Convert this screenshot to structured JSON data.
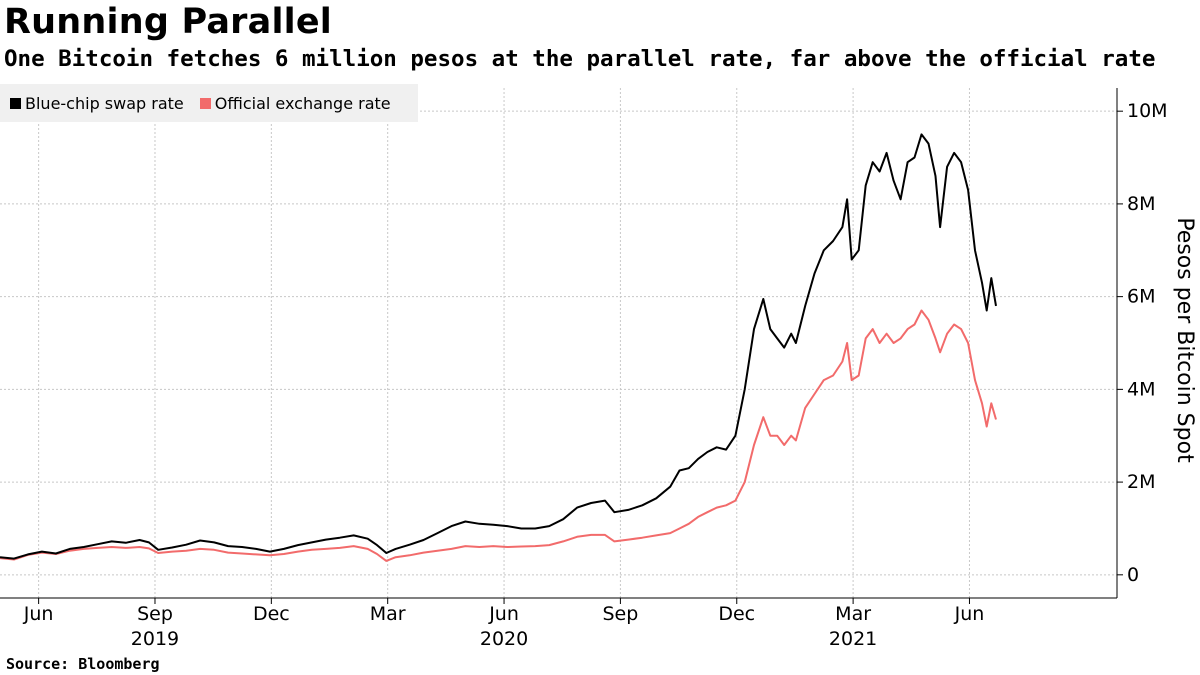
{
  "header": {
    "title": "Running Parallel",
    "subtitle": "One Bitcoin fetches 6 million pesos at the parallel rate, far above the official rate"
  },
  "footer": {
    "source": "Source: Bloomberg"
  },
  "colors": {
    "blue_chip": "#000000",
    "official": "#f26b6b",
    "grid": "#c8c8c8",
    "legend_bg": "#f0f0f0"
  },
  "chart_data": {
    "type": "line",
    "title": "Running Parallel",
    "subtitle": "One Bitcoin fetches 6 million pesos at the parallel rate, far above the official rate",
    "xlabel": "",
    "ylabel": "Pesos per Bitcoin Spot",
    "ylim": [
      -500000,
      10500000
    ],
    "yticks": [
      0,
      2000000,
      4000000,
      6000000,
      8000000,
      10000000
    ],
    "ytick_labels": [
      "0",
      "2M",
      "4M",
      "6M",
      "8M",
      "10M"
    ],
    "xlim": [
      0,
      2.4
    ],
    "xticks": [
      {
        "t": 0.083,
        "label": "Jun"
      },
      {
        "t": 0.333,
        "label": "Sep"
      },
      {
        "t": 0.583,
        "label": "Dec"
      },
      {
        "t": 0.833,
        "label": "Mar"
      },
      {
        "t": 1.083,
        "label": "Jun"
      },
      {
        "t": 1.333,
        "label": "Sep"
      },
      {
        "t": 1.583,
        "label": "Dec"
      },
      {
        "t": 1.833,
        "label": "Mar"
      },
      {
        "t": 2.083,
        "label": "Jun"
      }
    ],
    "year_labels": [
      {
        "t": 0.333,
        "label": "2019"
      },
      {
        "t": 1.083,
        "label": "2020"
      },
      {
        "t": 1.833,
        "label": "2021"
      }
    ],
    "grid": true,
    "legend": "top-left",
    "series": [
      {
        "name": "Blue-chip swap rate",
        "color": "#000000",
        "points": [
          [
            0.0,
            380000
          ],
          [
            0.03,
            350000
          ],
          [
            0.06,
            440000
          ],
          [
            0.09,
            500000
          ],
          [
            0.12,
            460000
          ],
          [
            0.15,
            560000
          ],
          [
            0.18,
            600000
          ],
          [
            0.21,
            660000
          ],
          [
            0.24,
            720000
          ],
          [
            0.27,
            690000
          ],
          [
            0.3,
            750000
          ],
          [
            0.32,
            700000
          ],
          [
            0.34,
            540000
          ],
          [
            0.37,
            590000
          ],
          [
            0.4,
            650000
          ],
          [
            0.43,
            740000
          ],
          [
            0.46,
            700000
          ],
          [
            0.49,
            620000
          ],
          [
            0.52,
            600000
          ],
          [
            0.55,
            560000
          ],
          [
            0.58,
            500000
          ],
          [
            0.61,
            560000
          ],
          [
            0.64,
            640000
          ],
          [
            0.67,
            700000
          ],
          [
            0.7,
            760000
          ],
          [
            0.73,
            800000
          ],
          [
            0.76,
            850000
          ],
          [
            0.79,
            780000
          ],
          [
            0.81,
            640000
          ],
          [
            0.83,
            470000
          ],
          [
            0.85,
            560000
          ],
          [
            0.88,
            650000
          ],
          [
            0.91,
            750000
          ],
          [
            0.94,
            900000
          ],
          [
            0.97,
            1050000
          ],
          [
            1.0,
            1150000
          ],
          [
            1.03,
            1100000
          ],
          [
            1.06,
            1080000
          ],
          [
            1.09,
            1050000
          ],
          [
            1.12,
            1000000
          ],
          [
            1.15,
            1000000
          ],
          [
            1.18,
            1050000
          ],
          [
            1.21,
            1200000
          ],
          [
            1.24,
            1450000
          ],
          [
            1.27,
            1550000
          ],
          [
            1.3,
            1600000
          ],
          [
            1.32,
            1350000
          ],
          [
            1.35,
            1400000
          ],
          [
            1.38,
            1500000
          ],
          [
            1.41,
            1650000
          ],
          [
            1.44,
            1900000
          ],
          [
            1.46,
            2250000
          ],
          [
            1.48,
            2300000
          ],
          [
            1.5,
            2500000
          ],
          [
            1.52,
            2650000
          ],
          [
            1.54,
            2750000
          ],
          [
            1.56,
            2700000
          ],
          [
            1.58,
            3000000
          ],
          [
            1.6,
            4000000
          ],
          [
            1.62,
            5300000
          ],
          [
            1.64,
            5950000
          ],
          [
            1.655,
            5300000
          ],
          [
            1.67,
            5100000
          ],
          [
            1.685,
            4900000
          ],
          [
            1.7,
            5200000
          ],
          [
            1.71,
            5000000
          ],
          [
            1.73,
            5800000
          ],
          [
            1.75,
            6500000
          ],
          [
            1.77,
            7000000
          ],
          [
            1.79,
            7200000
          ],
          [
            1.81,
            7500000
          ],
          [
            1.82,
            8100000
          ],
          [
            1.83,
            6800000
          ],
          [
            1.845,
            7000000
          ],
          [
            1.86,
            8400000
          ],
          [
            1.875,
            8900000
          ],
          [
            1.89,
            8700000
          ],
          [
            1.905,
            9100000
          ],
          [
            1.92,
            8500000
          ],
          [
            1.935,
            8100000
          ],
          [
            1.95,
            8900000
          ],
          [
            1.965,
            9000000
          ],
          [
            1.98,
            9500000
          ],
          [
            1.995,
            9300000
          ],
          [
            2.01,
            8600000
          ],
          [
            2.02,
            7500000
          ],
          [
            2.035,
            8800000
          ],
          [
            2.05,
            9100000
          ],
          [
            2.065,
            8900000
          ],
          [
            2.08,
            8300000
          ],
          [
            2.095,
            7000000
          ],
          [
            2.11,
            6300000
          ],
          [
            2.12,
            5700000
          ],
          [
            2.13,
            6400000
          ],
          [
            2.14,
            5800000
          ]
        ]
      },
      {
        "name": "Official exchange rate",
        "color": "#f26b6b",
        "points": [
          [
            0.0,
            360000
          ],
          [
            0.03,
            330000
          ],
          [
            0.06,
            430000
          ],
          [
            0.09,
            480000
          ],
          [
            0.12,
            450000
          ],
          [
            0.15,
            520000
          ],
          [
            0.18,
            560000
          ],
          [
            0.21,
            580000
          ],
          [
            0.24,
            600000
          ],
          [
            0.27,
            580000
          ],
          [
            0.3,
            600000
          ],
          [
            0.32,
            570000
          ],
          [
            0.34,
            470000
          ],
          [
            0.37,
            500000
          ],
          [
            0.4,
            520000
          ],
          [
            0.43,
            560000
          ],
          [
            0.46,
            540000
          ],
          [
            0.49,
            480000
          ],
          [
            0.52,
            460000
          ],
          [
            0.55,
            440000
          ],
          [
            0.58,
            420000
          ],
          [
            0.61,
            450000
          ],
          [
            0.64,
            500000
          ],
          [
            0.67,
            540000
          ],
          [
            0.7,
            560000
          ],
          [
            0.73,
            580000
          ],
          [
            0.76,
            620000
          ],
          [
            0.79,
            560000
          ],
          [
            0.81,
            450000
          ],
          [
            0.83,
            300000
          ],
          [
            0.85,
            380000
          ],
          [
            0.88,
            420000
          ],
          [
            0.91,
            480000
          ],
          [
            0.94,
            520000
          ],
          [
            0.97,
            560000
          ],
          [
            1.0,
            620000
          ],
          [
            1.03,
            600000
          ],
          [
            1.06,
            620000
          ],
          [
            1.09,
            600000
          ],
          [
            1.12,
            610000
          ],
          [
            1.15,
            620000
          ],
          [
            1.18,
            640000
          ],
          [
            1.21,
            720000
          ],
          [
            1.24,
            820000
          ],
          [
            1.27,
            860000
          ],
          [
            1.3,
            860000
          ],
          [
            1.32,
            720000
          ],
          [
            1.35,
            760000
          ],
          [
            1.38,
            800000
          ],
          [
            1.41,
            850000
          ],
          [
            1.44,
            900000
          ],
          [
            1.46,
            1000000
          ],
          [
            1.48,
            1100000
          ],
          [
            1.5,
            1250000
          ],
          [
            1.52,
            1350000
          ],
          [
            1.54,
            1450000
          ],
          [
            1.56,
            1500000
          ],
          [
            1.58,
            1600000
          ],
          [
            1.6,
            2000000
          ],
          [
            1.62,
            2800000
          ],
          [
            1.64,
            3400000
          ],
          [
            1.655,
            3000000
          ],
          [
            1.67,
            3000000
          ],
          [
            1.685,
            2800000
          ],
          [
            1.7,
            3000000
          ],
          [
            1.71,
            2900000
          ],
          [
            1.73,
            3600000
          ],
          [
            1.75,
            3900000
          ],
          [
            1.77,
            4200000
          ],
          [
            1.79,
            4300000
          ],
          [
            1.81,
            4600000
          ],
          [
            1.82,
            5000000
          ],
          [
            1.83,
            4200000
          ],
          [
            1.845,
            4300000
          ],
          [
            1.86,
            5100000
          ],
          [
            1.875,
            5300000
          ],
          [
            1.89,
            5000000
          ],
          [
            1.905,
            5200000
          ],
          [
            1.92,
            5000000
          ],
          [
            1.935,
            5100000
          ],
          [
            1.95,
            5300000
          ],
          [
            1.965,
            5400000
          ],
          [
            1.98,
            5700000
          ],
          [
            1.995,
            5500000
          ],
          [
            2.01,
            5100000
          ],
          [
            2.02,
            4800000
          ],
          [
            2.035,
            5200000
          ],
          [
            2.05,
            5400000
          ],
          [
            2.065,
            5300000
          ],
          [
            2.08,
            5000000
          ],
          [
            2.095,
            4200000
          ],
          [
            2.11,
            3700000
          ],
          [
            2.12,
            3200000
          ],
          [
            2.13,
            3700000
          ],
          [
            2.14,
            3350000
          ]
        ]
      }
    ]
  }
}
